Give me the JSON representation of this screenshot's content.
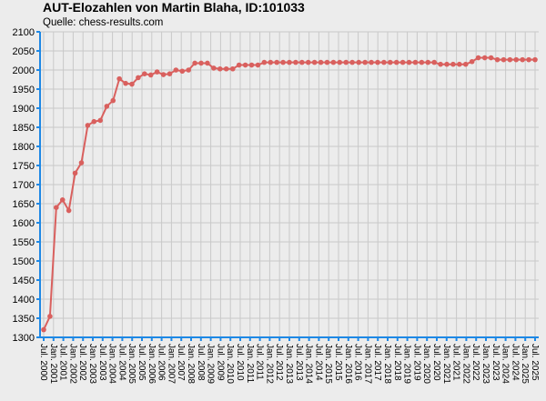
{
  "chart_data": {
    "type": "line",
    "title": "AUT-Elozahlen von Martin Blaha, ID:101033",
    "subtitle": "Quelle: chess-results.com",
    "color": "#d9605e",
    "grid": true,
    "x": [
      2000.5,
      2000.82,
      2001.14,
      2001.46,
      2001.78,
      2002.1,
      2002.42,
      2002.74,
      2003.06,
      2003.38,
      2003.71,
      2004.03,
      2004.35,
      2004.67,
      2004.99,
      2005.31,
      2005.63,
      2005.95,
      2006.27,
      2006.59,
      2006.91,
      2007.23,
      2007.55,
      2007.87,
      2008.19,
      2008.51,
      2008.83,
      2009.15,
      2009.47,
      2009.79,
      2010.12,
      2010.44,
      2010.76,
      2011.08,
      2011.4,
      2011.72,
      2012.04,
      2012.36,
      2012.68,
      2013.0,
      2013.32,
      2013.64,
      2013.96,
      2014.28,
      2014.6,
      2014.92,
      2015.24,
      2015.56,
      2015.88,
      2016.2,
      2016.53,
      2016.85,
      2017.17,
      2017.49,
      2017.81,
      2018.13,
      2018.45,
      2018.77,
      2019.09,
      2019.41,
      2019.73,
      2020.05,
      2020.37,
      2020.69,
      2021.01,
      2021.33,
      2021.65,
      2021.97,
      2022.29,
      2022.61,
      2022.94,
      2023.26,
      2023.58,
      2023.9,
      2024.22,
      2024.54,
      2024.86,
      2025.18,
      2025.5
    ],
    "values": [
      1320,
      1355,
      1640,
      1660,
      1632,
      1730,
      1757,
      1855,
      1865,
      1868,
      1905,
      1920,
      1977,
      1965,
      1963,
      1980,
      1990,
      1987,
      1995,
      1988,
      1990,
      2000,
      1997,
      2000,
      2018,
      2018,
      2018,
      2005,
      2003,
      2003,
      2003,
      2013,
      2013,
      2013,
      2013,
      2020,
      2020,
      2020,
      2020,
      2020,
      2020,
      2020,
      2020,
      2020,
      2020,
      2020,
      2020,
      2020,
      2020,
      2020,
      2020,
      2020,
      2020,
      2020,
      2020,
      2020,
      2020,
      2020,
      2020,
      2020,
      2020,
      2020,
      2020,
      2015,
      2015,
      2015,
      2015,
      2015,
      2022,
      2032,
      2032,
      2032,
      2027,
      2027,
      2027,
      2027,
      2027,
      2027,
      2027
    ],
    "xlim": [
      2000.5,
      2025.5
    ],
    "xticks": [
      {
        "value": 2000.5,
        "label": "Jul. 2000"
      },
      {
        "value": 2001,
        "label": "Jan. 2001"
      },
      {
        "value": 2001.5,
        "label": "Jul. 2001"
      },
      {
        "value": 2002,
        "label": "Jan. 2002"
      },
      {
        "value": 2002.5,
        "label": "Jul. 2002"
      },
      {
        "value": 2003,
        "label": "Jan. 2003"
      },
      {
        "value": 2003.5,
        "label": "Jul. 2003"
      },
      {
        "value": 2004,
        "label": "Jan. 2004"
      },
      {
        "value": 2004.5,
        "label": "Jul. 2004"
      },
      {
        "value": 2005,
        "label": "Jan. 2005"
      },
      {
        "value": 2005.5,
        "label": "Jul. 2005"
      },
      {
        "value": 2006,
        "label": "Jan. 2006"
      },
      {
        "value": 2006.5,
        "label": "Jul. 2006"
      },
      {
        "value": 2007,
        "label": "Jan. 2007"
      },
      {
        "value": 2007.5,
        "label": "Jul. 2007"
      },
      {
        "value": 2008,
        "label": "Jan. 2008"
      },
      {
        "value": 2008.5,
        "label": "Jul. 2008"
      },
      {
        "value": 2009,
        "label": "Jan. 2009"
      },
      {
        "value": 2009.5,
        "label": "Jul. 2009"
      },
      {
        "value": 2010,
        "label": "Jan. 2010"
      },
      {
        "value": 2010.5,
        "label": "Jul. 2010"
      },
      {
        "value": 2011,
        "label": "Jan. 2011"
      },
      {
        "value": 2011.5,
        "label": "Jul. 2011"
      },
      {
        "value": 2012,
        "label": "Jan. 2012"
      },
      {
        "value": 2012.5,
        "label": "Jul. 2012"
      },
      {
        "value": 2013,
        "label": "Jan. 2013"
      },
      {
        "value": 2013.5,
        "label": "Jul. 2013"
      },
      {
        "value": 2014,
        "label": "Jan. 2014"
      },
      {
        "value": 2014.5,
        "label": "Jul. 2014"
      },
      {
        "value": 2015,
        "label": "Jan. 2015"
      },
      {
        "value": 2015.5,
        "label": "Jul. 2015"
      },
      {
        "value": 2016,
        "label": "Jan. 2016"
      },
      {
        "value": 2016.5,
        "label": "Jul. 2016"
      },
      {
        "value": 2017,
        "label": "Jan. 2017"
      },
      {
        "value": 2017.5,
        "label": "Jul. 2017"
      },
      {
        "value": 2018,
        "label": "Jan. 2018"
      },
      {
        "value": 2018.5,
        "label": "Jul. 2018"
      },
      {
        "value": 2019,
        "label": "Jan. 2019"
      },
      {
        "value": 2019.5,
        "label": "Jul. 2019"
      },
      {
        "value": 2020,
        "label": "Jan. 2020"
      },
      {
        "value": 2020.5,
        "label": "Jul. 2020"
      },
      {
        "value": 2021,
        "label": "Jan. 2021"
      },
      {
        "value": 2021.5,
        "label": "Jul. 2021"
      },
      {
        "value": 2022,
        "label": "Jan. 2022"
      },
      {
        "value": 2022.5,
        "label": "Jul. 2022"
      },
      {
        "value": 2023,
        "label": "Jan. 2023"
      },
      {
        "value": 2023.5,
        "label": "Jul. 2023"
      },
      {
        "value": 2024,
        "label": "Jan. 2024"
      },
      {
        "value": 2024.5,
        "label": "Jul. 2024"
      },
      {
        "value": 2025,
        "label": "Jan. 2025"
      },
      {
        "value": 2025.5,
        "label": "Jul. 2025"
      }
    ],
    "ylim": [
      1300,
      2100
    ],
    "yticks": [
      1300,
      1350,
      1400,
      1450,
      1500,
      1550,
      1600,
      1650,
      1700,
      1750,
      1800,
      1850,
      1900,
      1950,
      2000,
      2050,
      2100
    ]
  }
}
